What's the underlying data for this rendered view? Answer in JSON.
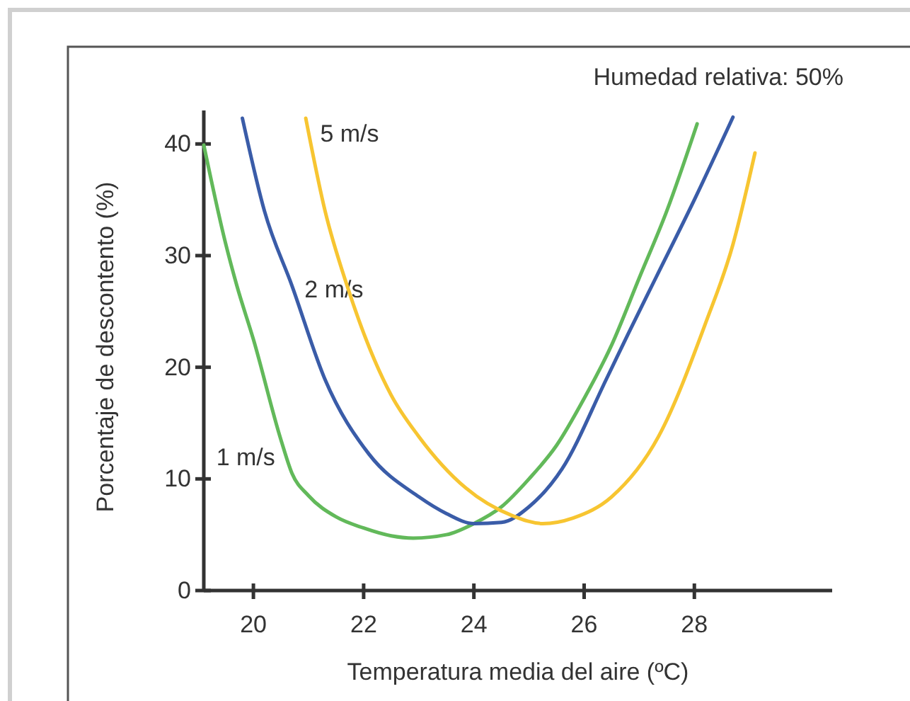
{
  "chart_data": {
    "type": "line",
    "xlabel": "Temperatura media del aire (ºC)",
    "ylabel": "Porcentaje de descontento (%)",
    "annotations": [
      "Humedad relativa: 50%"
    ],
    "xlim": [
      19.1,
      30.5
    ],
    "ylim": [
      0,
      43
    ],
    "xticks": [
      20,
      22,
      24,
      26,
      28
    ],
    "yticks": [
      0,
      10,
      20,
      30,
      40
    ],
    "grid": false,
    "marker": "none",
    "line_style": "solid",
    "series": [
      {
        "name": "1 m/s",
        "color": "#62b95a",
        "x": [
          19.1,
          19.5,
          19.7,
          20,
          20.5,
          20.7,
          21,
          21.5,
          22,
          22.5,
          22.9,
          23.5,
          24,
          24.5,
          25,
          25.5,
          26,
          26.5,
          27,
          27.5,
          28.05
        ],
        "values": [
          39.9,
          31,
          27.3,
          22.5,
          13.5,
          10.5,
          8.5,
          6.6,
          5.6,
          4.9,
          4.7,
          5.0,
          6.0,
          7.5,
          10,
          13,
          17.2,
          22,
          28,
          34,
          41.8
        ]
      },
      {
        "name": "2 m/s",
        "color": "#3a5ca8",
        "x": [
          19.8,
          20.2,
          20.7,
          21.3,
          22.1,
          23,
          23.5,
          24,
          24.5,
          25,
          25.6,
          26.4,
          26.8,
          27.3,
          28,
          28.7
        ],
        "values": [
          42.3,
          34,
          27.3,
          18.9,
          12.2,
          8.4,
          6.9,
          6.0,
          6.1,
          7.5,
          10.9,
          18.9,
          23,
          28,
          35,
          42.4
        ]
      },
      {
        "name": "5 m/s",
        "color": "#f7c531",
        "x": [
          20.95,
          21.3,
          21.7,
          22.1,
          22.5,
          23,
          23.85,
          24.7,
          25.25,
          25.8,
          26.5,
          27.35,
          28.2,
          28.7,
          29.1
        ],
        "values": [
          42.3,
          34,
          27.3,
          21.8,
          17.5,
          13.8,
          9.2,
          6.7,
          6.0,
          6.5,
          8.4,
          13.8,
          23.9,
          31,
          39.2
        ]
      }
    ]
  }
}
